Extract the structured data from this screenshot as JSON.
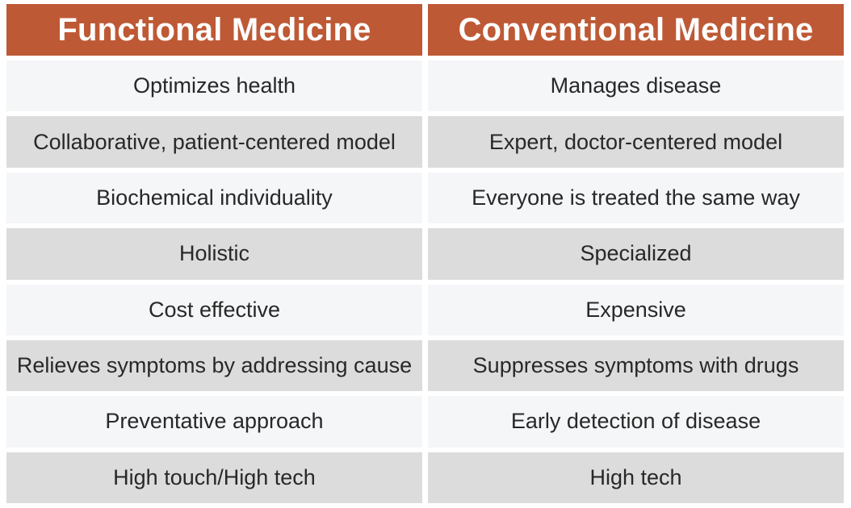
{
  "chart_data": {
    "type": "table",
    "columns": [
      "Functional Medicine",
      "Conventional Medicine"
    ],
    "rows": [
      [
        "Optimizes health",
        "Manages disease"
      ],
      [
        "Collaborative, patient-centered model",
        "Expert, doctor-centered model"
      ],
      [
        "Biochemical individuality",
        "Everyone is treated the same way"
      ],
      [
        "Holistic",
        "Specialized"
      ],
      [
        "Cost effective",
        "Expensive"
      ],
      [
        "Relieves symptoms by addressing cause",
        "Suppresses symptoms with drugs"
      ],
      [
        "Preventative approach",
        "Early detection of disease"
      ],
      [
        "High touch/High tech",
        "High tech"
      ]
    ],
    "layout": {
      "header_row": true,
      "alternating_row_shading": true,
      "column_count": 2,
      "body_row_count": 8
    }
  },
  "colors": {
    "page_bg": "#FFFFFF",
    "header_bg": "#BE5935",
    "header_text": "#FDFDFD",
    "row_light_bg": "#F5F6F8",
    "row_shaded_bg": "#DCDCDC",
    "row_text": "#282828"
  }
}
